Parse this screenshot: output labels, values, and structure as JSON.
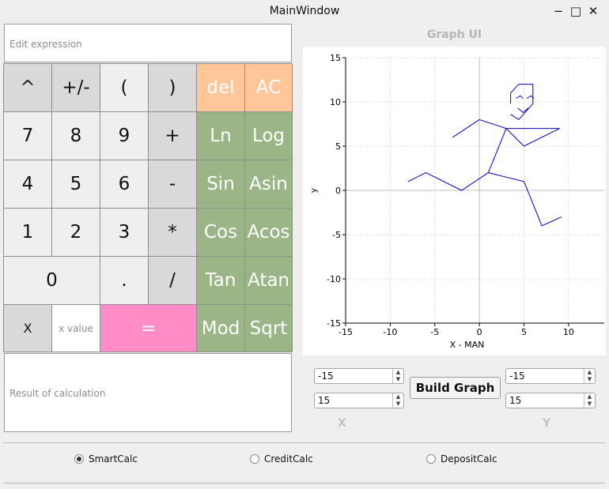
{
  "window": {
    "title": "MainWindow",
    "minimize": "−",
    "maximize": "□",
    "close": "✕"
  },
  "expression": {
    "placeholder": "Edit expression"
  },
  "keys": [
    {
      "label": "^",
      "style": "gray"
    },
    {
      "label": "+/-",
      "style": "gray"
    },
    {
      "label": "(",
      "style": "light"
    },
    {
      "label": ")",
      "style": "gray"
    },
    {
      "label": "del",
      "style": "orange"
    },
    {
      "label": "AC",
      "style": "orange"
    },
    {
      "label": "7",
      "style": "light"
    },
    {
      "label": "8",
      "style": "light"
    },
    {
      "label": "9",
      "style": "light"
    },
    {
      "label": "+",
      "style": "gray"
    },
    {
      "label": "Ln",
      "style": "green"
    },
    {
      "label": "Log",
      "style": "green"
    },
    {
      "label": "4",
      "style": "light"
    },
    {
      "label": "5",
      "style": "light"
    },
    {
      "label": "6",
      "style": "light"
    },
    {
      "label": "-",
      "style": "gray"
    },
    {
      "label": "Sin",
      "style": "green"
    },
    {
      "label": "Asin",
      "style": "green"
    },
    {
      "label": "1",
      "style": "light"
    },
    {
      "label": "2",
      "style": "light"
    },
    {
      "label": "3",
      "style": "light"
    },
    {
      "label": "*",
      "style": "gray"
    },
    {
      "label": "Cos",
      "style": "green"
    },
    {
      "label": "Acos",
      "style": "green"
    },
    {
      "label": "0",
      "style": "light"
    },
    {
      "label": ".",
      "style": "light"
    },
    {
      "label": "/",
      "style": "gray"
    },
    {
      "label": "Tan",
      "style": "green"
    },
    {
      "label": "Atan",
      "style": "green"
    },
    {
      "label": "X",
      "style": "x"
    },
    {
      "label": "x value",
      "style": "input"
    },
    {
      "label": "=",
      "style": "pink"
    },
    {
      "label": "Mod",
      "style": "green"
    },
    {
      "label": "Sqrt",
      "style": "green"
    }
  ],
  "result": {
    "placeholder": "Result of calculation"
  },
  "graph": {
    "title": "Graph UI",
    "build_label": "Build Graph",
    "x_caption": "X",
    "y_caption": "Y",
    "x_min": "-15",
    "x_max": "15",
    "y_min": "-15",
    "y_max": "15"
  },
  "chart_data": {
    "type": "line",
    "xlabel": "X - MAN",
    "ylabel": "y",
    "xlim": [
      -15,
      14
    ],
    "ylim": [
      -15,
      15
    ],
    "xticks": [
      -15,
      -10,
      -5,
      0,
      5,
      10
    ],
    "yticks": [
      -15,
      -10,
      -5,
      0,
      5,
      10,
      15
    ],
    "grid": true,
    "color": "#0000cc",
    "series": [
      {
        "x": [
          -8,
          -6,
          -2,
          1,
          5,
          7,
          9.2
        ],
        "y": [
          1,
          2,
          0,
          2,
          1,
          -4,
          -3
        ]
      },
      {
        "x": [
          -3,
          0,
          3,
          9
        ],
        "y": [
          6,
          8,
          7,
          7
        ]
      },
      {
        "x": [
          1,
          3,
          5,
          9
        ],
        "y": [
          2,
          7,
          5,
          7
        ]
      },
      {
        "x": [
          3.5,
          3.5,
          4.4,
          6.0,
          6.0,
          4.4,
          3.5
        ],
        "y": [
          9.8,
          11,
          12,
          12,
          9.8,
          8,
          8.6
        ]
      },
      {
        "x": [
          4.1,
          4.6,
          4.9
        ],
        "y": [
          10.4,
          10.7,
          10.4
        ]
      },
      {
        "x": [
          5.3,
          5.8,
          6.1
        ],
        "y": [
          10.4,
          10.7,
          10.4
        ]
      },
      {
        "x": [
          4.3,
          4.9,
          5.5
        ],
        "y": [
          9.3,
          8.8,
          9.3
        ]
      }
    ]
  },
  "modes": [
    {
      "label": "SmartCalc",
      "checked": true
    },
    {
      "label": "CreditCalc",
      "checked": false
    },
    {
      "label": "DepositCalc",
      "checked": false
    }
  ]
}
